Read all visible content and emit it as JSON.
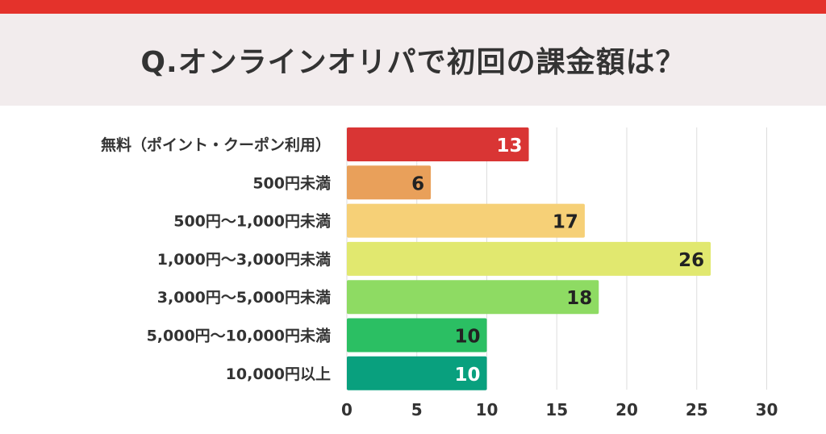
{
  "title": "Q.オンラインオリパで初回の課金額は？",
  "colors": {
    "top_bar": "#e4322b",
    "title_band": "#f2eced",
    "grid": "#dddddd",
    "category_text": "#333333",
    "tick_text": "#333333"
  },
  "chart_data": {
    "type": "bar",
    "orientation": "horizontal",
    "categories": [
      "無料（ポイント・クーポン利用）",
      "500円未満",
      "500円〜1,000円未満",
      "1,000円〜3,000円未満",
      "3,000円〜5,000円未満",
      "5,000円〜10,000円未満",
      "10,000円以上"
    ],
    "values": [
      13,
      6,
      17,
      26,
      18,
      10,
      10
    ],
    "bar_colors": [
      "#d93534",
      "#e9a05a",
      "#f6d077",
      "#e1e86f",
      "#8edb63",
      "#2bbf63",
      "#09a07e"
    ],
    "label_colors": [
      "#ffffff",
      "#222222",
      "#222222",
      "#222222",
      "#222222",
      "#222222",
      "#ffffff"
    ],
    "xlim": [
      0,
      30
    ],
    "xticks": [
      0,
      5,
      10,
      15,
      20,
      25,
      30
    ],
    "grid": true,
    "data_labels": true
  }
}
